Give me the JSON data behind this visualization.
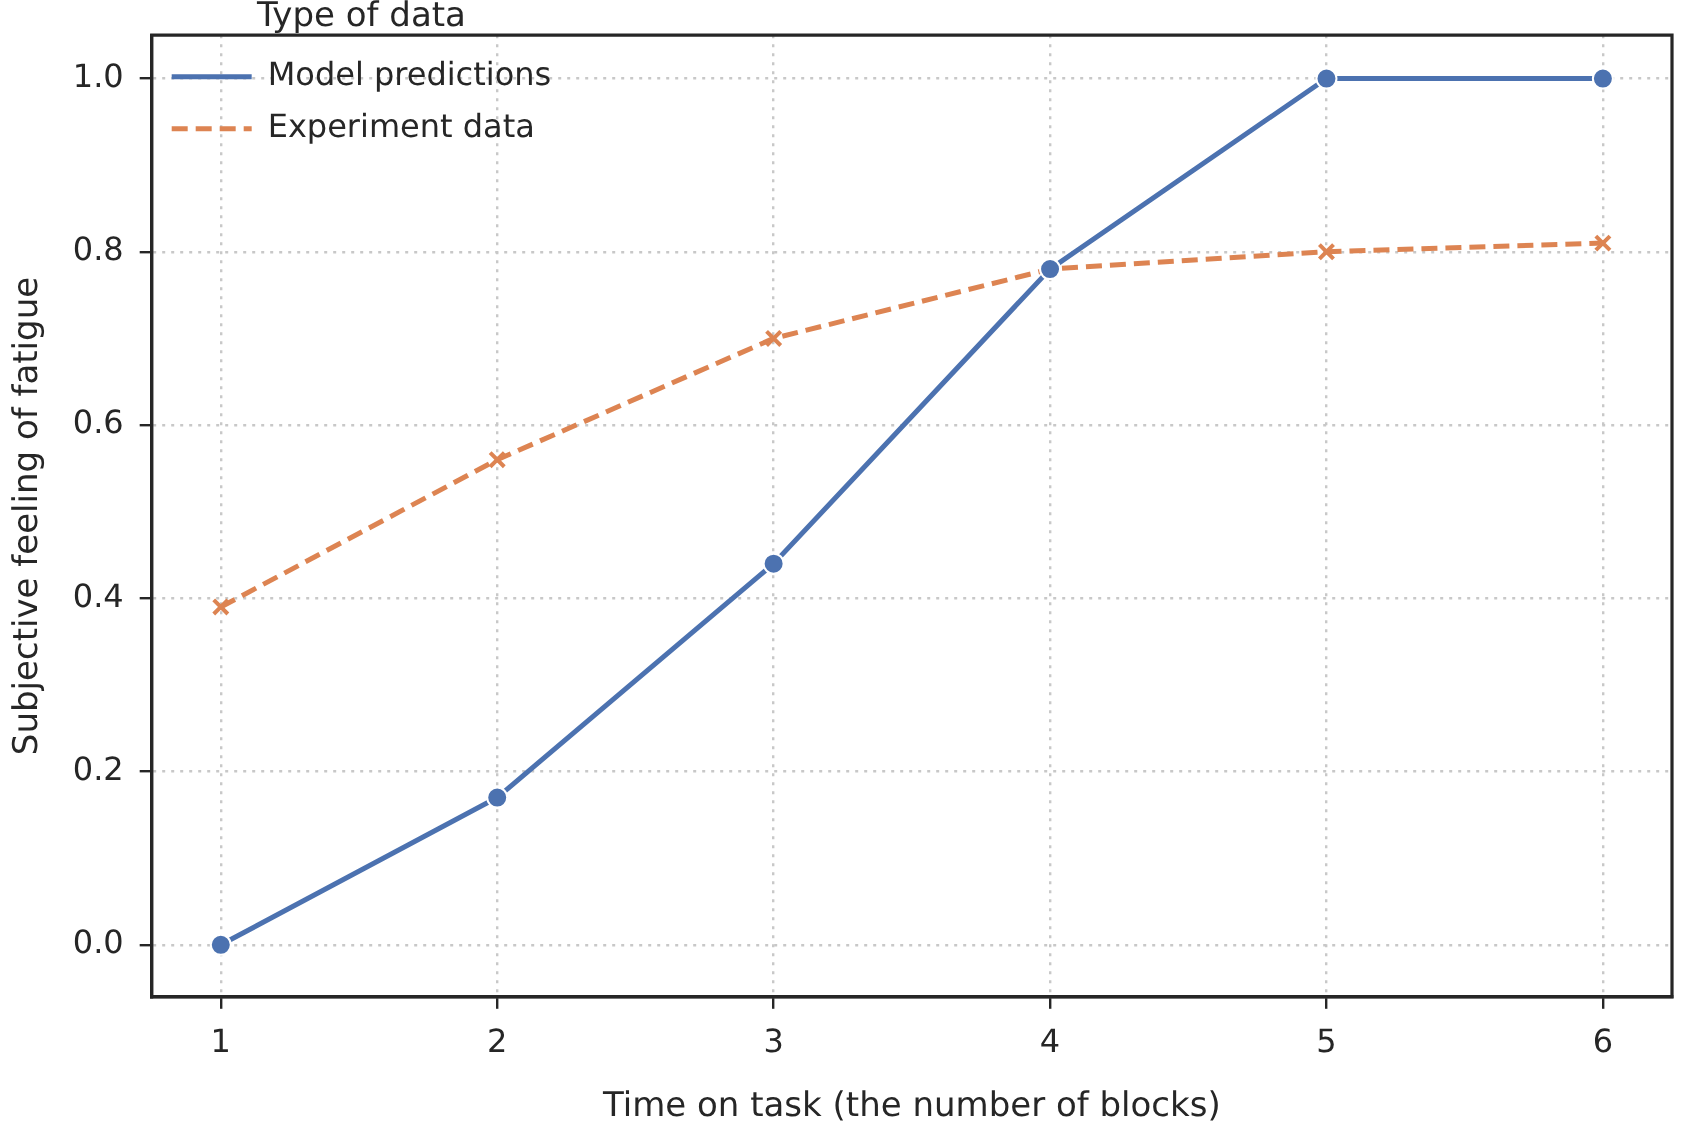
{
  "chart_data": {
    "type": "line",
    "xlabel": "Time on task (the number of blocks)",
    "ylabel": "Subjective feeling of fatigue",
    "legend_title": "Type of data",
    "x": [
      1,
      2,
      3,
      4,
      5,
      6
    ],
    "series": [
      {
        "name": "Model predictions",
        "color": "#4c72b0",
        "values": [
          0.0,
          0.17,
          0.44,
          0.78,
          1.0,
          1.0
        ],
        "marker": "circle",
        "line_style": "solid"
      },
      {
        "name": "Experiment data",
        "color": "#dd8452",
        "values": [
          0.39,
          0.56,
          0.7,
          0.78,
          0.8,
          0.81
        ],
        "marker": "cross",
        "line_style": "dashed"
      }
    ],
    "xlim": [
      0.75,
      6.25
    ],
    "xticks": [
      1,
      2,
      3,
      4,
      5,
      6
    ],
    "ylim": [
      -0.06,
      1.05
    ],
    "yticks": [
      {
        "value": 0,
        "label": "0.0"
      },
      {
        "value": 0.2,
        "label": "0.2"
      },
      {
        "value": 0.4,
        "label": "0.4"
      },
      {
        "value": 0.6,
        "label": "0.6"
      },
      {
        "value": 0.8,
        "label": "0.8"
      },
      {
        "value": 1,
        "label": "1.0"
      }
    ],
    "grid": true,
    "legend": "top left"
  }
}
